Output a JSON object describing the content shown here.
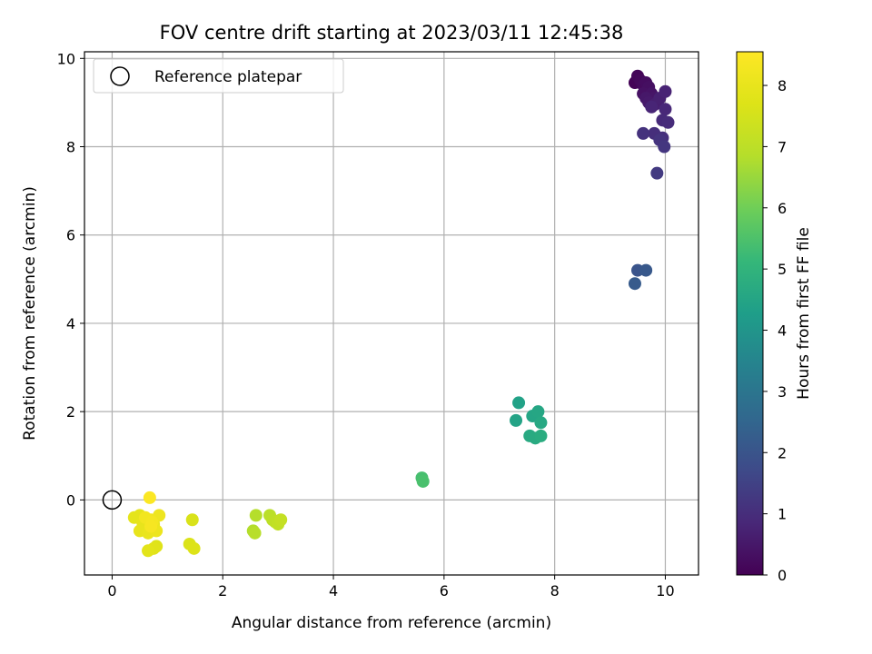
{
  "chart_data": {
    "type": "scatter",
    "title": "FOV centre drift starting at 2023/03/11 12:45:38",
    "xlabel": "Angular distance from reference (arcmin)",
    "ylabel": "Rotation from reference (arcmin)",
    "xlim": [
      -0.5,
      10.6
    ],
    "ylim": [
      -1.7,
      10.15
    ],
    "x_ticks": [
      0,
      2,
      4,
      6,
      8,
      10
    ],
    "y_ticks": [
      0,
      2,
      4,
      6,
      8,
      10
    ],
    "grid": true,
    "legend": {
      "placement": "top-left",
      "entries": [
        "Reference platepar"
      ]
    },
    "reference_point": {
      "x": 0,
      "y": 0,
      "label": "Reference platepar"
    },
    "colorbar": {
      "label": "Hours from first FF file",
      "colormap": "viridis",
      "range": [
        0,
        8.55
      ],
      "ticks": [
        0,
        1,
        2,
        3,
        4,
        5,
        6,
        7,
        8
      ]
    },
    "points": [
      {
        "x": 9.45,
        "y": 9.45,
        "hours": 0.05
      },
      {
        "x": 9.5,
        "y": 9.6,
        "hours": 0.1
      },
      {
        "x": 9.55,
        "y": 9.5,
        "hours": 0.15
      },
      {
        "x": 9.6,
        "y": 9.4,
        "hours": 0.2
      },
      {
        "x": 9.65,
        "y": 9.45,
        "hours": 0.25
      },
      {
        "x": 9.7,
        "y": 9.35,
        "hours": 0.3
      },
      {
        "x": 9.6,
        "y": 9.2,
        "hours": 0.35
      },
      {
        "x": 9.75,
        "y": 9.2,
        "hours": 0.4
      },
      {
        "x": 9.8,
        "y": 9.1,
        "hours": 0.45
      },
      {
        "x": 9.65,
        "y": 9.1,
        "hours": 0.5
      },
      {
        "x": 9.7,
        "y": 9.0,
        "hours": 0.55
      },
      {
        "x": 9.85,
        "y": 9.0,
        "hours": 0.6
      },
      {
        "x": 9.8,
        "y": 8.95,
        "hours": 0.65
      },
      {
        "x": 9.9,
        "y": 9.1,
        "hours": 0.7
      },
      {
        "x": 10.0,
        "y": 9.25,
        "hours": 0.75
      },
      {
        "x": 9.75,
        "y": 8.9,
        "hours": 0.8
      },
      {
        "x": 10.0,
        "y": 8.85,
        "hours": 0.85
      },
      {
        "x": 9.95,
        "y": 8.6,
        "hours": 0.9
      },
      {
        "x": 10.05,
        "y": 8.55,
        "hours": 0.95
      },
      {
        "x": 9.8,
        "y": 8.3,
        "hours": 1.0
      },
      {
        "x": 9.95,
        "y": 8.2,
        "hours": 1.05
      },
      {
        "x": 9.6,
        "y": 8.3,
        "hours": 1.1
      },
      {
        "x": 9.9,
        "y": 8.15,
        "hours": 1.15
      },
      {
        "x": 9.98,
        "y": 8.0,
        "hours": 1.2
      },
      {
        "x": 9.85,
        "y": 7.4,
        "hours": 1.3
      },
      {
        "x": 9.5,
        "y": 5.2,
        "hours": 2.0
      },
      {
        "x": 9.65,
        "y": 5.2,
        "hours": 2.1
      },
      {
        "x": 9.45,
        "y": 4.9,
        "hours": 2.2
      },
      {
        "x": 7.35,
        "y": 2.2,
        "hours": 4.4
      },
      {
        "x": 7.3,
        "y": 1.8,
        "hours": 4.45
      },
      {
        "x": 7.6,
        "y": 1.9,
        "hours": 4.5
      },
      {
        "x": 7.7,
        "y": 2.0,
        "hours": 4.55
      },
      {
        "x": 7.75,
        "y": 1.75,
        "hours": 4.6
      },
      {
        "x": 7.55,
        "y": 1.45,
        "hours": 4.65
      },
      {
        "x": 7.65,
        "y": 1.4,
        "hours": 4.7
      },
      {
        "x": 7.75,
        "y": 1.45,
        "hours": 4.75
      },
      {
        "x": 5.6,
        "y": 0.5,
        "hours": 5.4
      },
      {
        "x": 5.62,
        "y": 0.42,
        "hours": 5.45
      },
      {
        "x": 2.55,
        "y": -0.7,
        "hours": 6.8
      },
      {
        "x": 2.6,
        "y": -0.35,
        "hours": 6.85
      },
      {
        "x": 2.58,
        "y": -0.75,
        "hours": 6.9
      },
      {
        "x": 2.85,
        "y": -0.35,
        "hours": 6.95
      },
      {
        "x": 2.9,
        "y": -0.45,
        "hours": 7.0
      },
      {
        "x": 2.95,
        "y": -0.5,
        "hours": 7.05
      },
      {
        "x": 3.0,
        "y": -0.55,
        "hours": 7.1
      },
      {
        "x": 3.05,
        "y": -0.45,
        "hours": 7.15
      },
      {
        "x": 1.45,
        "y": -0.45,
        "hours": 7.6
      },
      {
        "x": 1.4,
        "y": -1.0,
        "hours": 7.65
      },
      {
        "x": 1.48,
        "y": -1.1,
        "hours": 7.7
      },
      {
        "x": 0.8,
        "y": -1.05,
        "hours": 7.75
      },
      {
        "x": 0.75,
        "y": -1.1,
        "hours": 7.8
      },
      {
        "x": 0.65,
        "y": -1.15,
        "hours": 7.85
      },
      {
        "x": 0.4,
        "y": -0.4,
        "hours": 7.9
      },
      {
        "x": 0.5,
        "y": -0.35,
        "hours": 7.92
      },
      {
        "x": 0.55,
        "y": -0.5,
        "hours": 7.95
      },
      {
        "x": 0.6,
        "y": -0.65,
        "hours": 7.98
      },
      {
        "x": 0.5,
        "y": -0.7,
        "hours": 8.0
      },
      {
        "x": 0.65,
        "y": -0.75,
        "hours": 8.03
      },
      {
        "x": 0.7,
        "y": -0.6,
        "hours": 8.06
      },
      {
        "x": 0.75,
        "y": -0.55,
        "hours": 8.09
      },
      {
        "x": 0.8,
        "y": -0.7,
        "hours": 8.12
      },
      {
        "x": 0.85,
        "y": -0.35,
        "hours": 8.15
      },
      {
        "x": 0.7,
        "y": -0.45,
        "hours": 8.2
      },
      {
        "x": 0.6,
        "y": -0.4,
        "hours": 8.25
      },
      {
        "x": 0.72,
        "y": -0.5,
        "hours": 8.3
      },
      {
        "x": 0.7,
        "y": -0.6,
        "hours": 8.35
      },
      {
        "x": 0.68,
        "y": 0.05,
        "hours": 8.5
      }
    ]
  }
}
